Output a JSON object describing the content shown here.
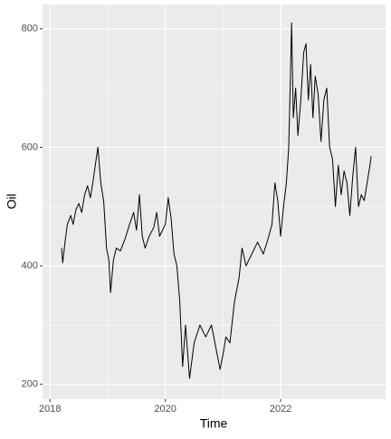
{
  "chart_data": {
    "type": "line",
    "x_label": "Time",
    "y_label": "Oil",
    "color": "#000000",
    "grid": true,
    "x": [
      2018.2,
      2018.22,
      2018.26,
      2018.3,
      2018.36,
      2018.4,
      2018.45,
      2018.5,
      2018.55,
      2018.6,
      2018.65,
      2018.7,
      2018.75,
      2018.8,
      2018.83,
      2018.88,
      2018.93,
      2018.98,
      2019.02,
      2019.05,
      2019.1,
      2019.15,
      2019.22,
      2019.3,
      2019.38,
      2019.45,
      2019.5,
      2019.55,
      2019.6,
      2019.65,
      2019.72,
      2019.8,
      2019.85,
      2019.9,
      2019.95,
      2020.0,
      2020.05,
      2020.1,
      2020.15,
      2020.2,
      2020.25,
      2020.3,
      2020.35,
      2020.42,
      2020.5,
      2020.6,
      2020.7,
      2020.8,
      2020.88,
      2020.95,
      2021.0,
      2021.05,
      2021.12,
      2021.2,
      2021.28,
      2021.33,
      2021.4,
      2021.5,
      2021.6,
      2021.7,
      2021.78,
      2021.85,
      2021.9,
      2021.95,
      2022.0,
      2022.05,
      2022.1,
      2022.14,
      2022.17,
      2022.19,
      2022.22,
      2022.26,
      2022.3,
      2022.35,
      2022.4,
      2022.44,
      2022.48,
      2022.52,
      2022.56,
      2022.6,
      2022.65,
      2022.7,
      2022.75,
      2022.8,
      2022.85,
      2022.9,
      2022.95,
      2023.0,
      2023.05,
      2023.1,
      2023.15,
      2023.2,
      2023.25,
      2023.3,
      2023.35,
      2023.4,
      2023.45,
      2023.5,
      2023.55,
      2023.57
    ],
    "values": [
      430,
      405,
      440,
      470,
      485,
      470,
      495,
      505,
      490,
      520,
      535,
      515,
      545,
      580,
      600,
      540,
      510,
      430,
      410,
      355,
      410,
      430,
      425,
      445,
      470,
      490,
      460,
      520,
      450,
      430,
      450,
      465,
      490,
      450,
      460,
      470,
      515,
      480,
      420,
      400,
      340,
      230,
      300,
      210,
      270,
      300,
      280,
      300,
      260,
      225,
      250,
      280,
      270,
      340,
      380,
      430,
      400,
      420,
      440,
      420,
      445,
      470,
      540,
      510,
      450,
      500,
      540,
      600,
      720,
      810,
      650,
      700,
      620,
      680,
      760,
      775,
      680,
      740,
      650,
      720,
      690,
      610,
      680,
      700,
      600,
      580,
      500,
      570,
      520,
      560,
      540,
      485,
      550,
      600,
      500,
      520,
      510,
      540,
      570,
      585
    ],
    "xlim": [
      2017.87,
      2023.82
    ],
    "ylim": [
      175,
      841
    ],
    "xticks": [
      2018,
      2020,
      2022
    ],
    "yticks": [
      200,
      400,
      600,
      800
    ]
  }
}
